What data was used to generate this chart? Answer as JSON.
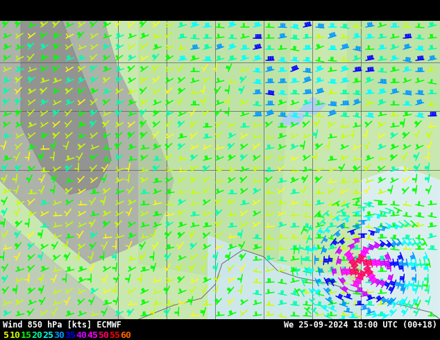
{
  "title_left": "Wind 850 hPa [kts] ECMWF",
  "title_right": "We 25-09-2024 18:00 UTC (00+18)",
  "legend_values": [
    "5",
    "10",
    "15",
    "20",
    "25",
    "30",
    "35",
    "40",
    "45",
    "50",
    "55",
    "60"
  ],
  "legend_colors": [
    "#ffff00",
    "#c8ff00",
    "#00ff00",
    "#00ffaa",
    "#00ffff",
    "#0099ff",
    "#0000ff",
    "#cc00ff",
    "#ff00ff",
    "#ff0066",
    "#ff0000",
    "#ff6600"
  ],
  "bg_color": "#c8c8c8",
  "map_land_color": "#aaddaa",
  "map_ocean_color": "#ffffff",
  "map_mountain_color": "#888888",
  "font_family": "monospace",
  "title_fontsize": 8.5,
  "legend_fontsize": 9.5,
  "fig_width": 6.34,
  "fig_height": 4.9,
  "dpi": 100,
  "bottom_bar_height": 30,
  "bottom_bar_color": "#1a1a1a"
}
